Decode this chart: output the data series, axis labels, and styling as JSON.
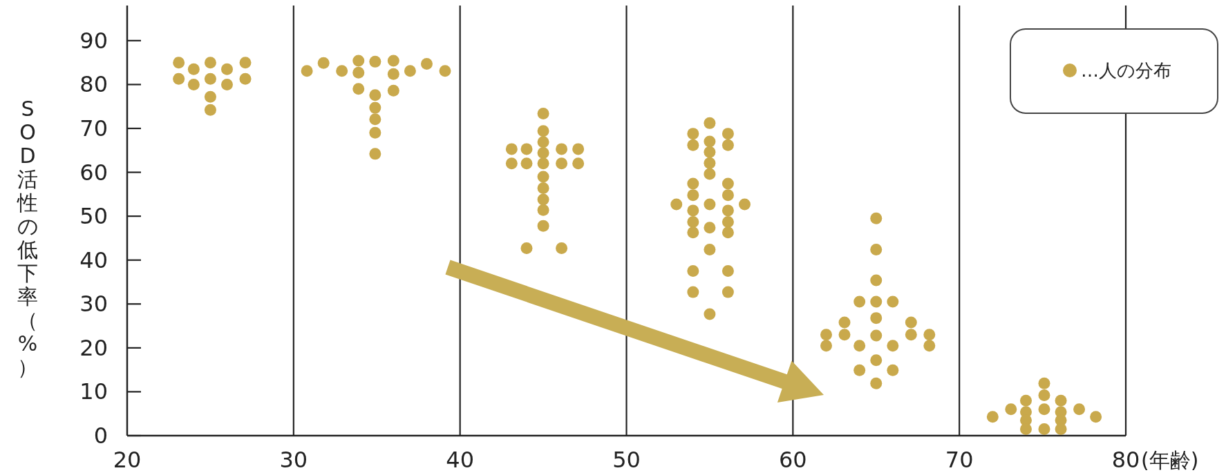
{
  "chart_data": {
    "type": "scatter",
    "xlabel": "(年齢)",
    "ylabel": "SOD活性の低下率（%）",
    "xlim": [
      20,
      80
    ],
    "ylim": [
      0,
      98
    ],
    "xticks": [
      20,
      30,
      40,
      50,
      60,
      70,
      80
    ],
    "yticks": [
      0,
      10,
      20,
      30,
      40,
      50,
      60,
      70,
      80,
      90
    ],
    "grid": "x",
    "legend": "top right",
    "marker": "circle",
    "series": [
      {
        "name": "…人の分布",
        "color": "#c9a94c",
        "x": [
          23.1,
          25,
          27.1,
          24,
          26,
          23.1,
          25,
          27.1,
          24,
          26,
          25,
          25,
          30.8,
          31.8,
          32.9,
          33.9,
          33.9,
          34.9,
          36,
          36,
          37,
          38,
          39.1,
          33.9,
          34.9,
          34.9,
          34.9,
          34.9,
          34.9,
          36,
          45,
          45,
          45,
          45,
          45,
          45,
          45,
          45,
          45,
          45,
          43.1,
          44,
          46.1,
          47.1,
          43.1,
          44,
          46.1,
          47.1,
          44,
          46.1,
          55,
          55,
          55,
          55,
          55,
          55,
          55,
          55,
          55,
          54,
          54,
          54,
          54,
          54,
          54,
          54,
          54,
          54,
          56.1,
          56.1,
          56.1,
          56.1,
          56.1,
          56.1,
          56.1,
          56.1,
          56.1,
          53,
          57.1,
          65,
          65,
          65,
          65,
          65,
          65,
          65,
          65,
          64,
          64,
          64,
          66,
          66,
          66,
          63.1,
          63.1,
          62,
          62,
          67.1,
          67.1,
          68.2,
          68.2,
          75.1,
          75.1,
          75.1,
          75.1,
          74,
          74,
          74,
          74,
          76.1,
          76.1,
          76.1,
          76.1,
          73.1,
          77.2,
          72,
          78.2
        ],
        "values": [
          85,
          85,
          85,
          83.5,
          83.5,
          81.3,
          81.3,
          81.3,
          80,
          80,
          77.2,
          74.2,
          83.1,
          84.9,
          83.1,
          85.4,
          82.7,
          85.2,
          85.4,
          82.4,
          83.1,
          84.7,
          83.1,
          79,
          77.6,
          74.7,
          72.1,
          69,
          64.2,
          78.6,
          73.4,
          69.4,
          66.9,
          64.4,
          62,
          59,
          56.4,
          53.8,
          51.4,
          47.8,
          65.3,
          65.3,
          65.3,
          65.3,
          62,
          62,
          62,
          62,
          42.7,
          42.7,
          71.2,
          67,
          64.6,
          62.1,
          59.6,
          52.7,
          47.4,
          42.4,
          27.7,
          68.8,
          66.2,
          57.4,
          54.8,
          51.3,
          48.7,
          46.3,
          37.5,
          32.7,
          68.8,
          66.2,
          57.4,
          54.8,
          51.3,
          48.7,
          46.3,
          37.5,
          32.7,
          52.7,
          52.7,
          49.5,
          42.4,
          35.4,
          30.5,
          26.8,
          22.8,
          17.2,
          11.9,
          30.5,
          20.5,
          14.9,
          30.5,
          20.5,
          14.9,
          25.8,
          23,
          23,
          20.5,
          25.8,
          23,
          23,
          20.5,
          11.9,
          9.2,
          6,
          1.5,
          8,
          5.4,
          3.5,
          1.5,
          8,
          5.4,
          3.5,
          1.5,
          6,
          6,
          4.3,
          4.3
        ]
      }
    ]
  }
}
